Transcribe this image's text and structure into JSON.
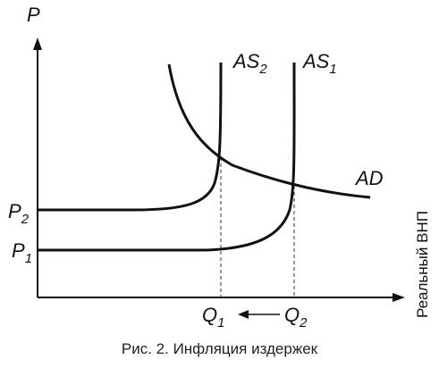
{
  "chart_data": {
    "type": "line",
    "y_axis_label": "P",
    "x_axis_label": "Реальный ВНП",
    "caption": "Рис. 2. Инфляция издержек",
    "price_levels": [
      {
        "id": "p2",
        "base": "P",
        "sub": "2"
      },
      {
        "id": "p1",
        "base": "P",
        "sub": "1"
      }
    ],
    "output_levels": [
      {
        "id": "q1",
        "base": "Q",
        "sub": "1"
      },
      {
        "id": "q2",
        "base": "Q",
        "sub": "2"
      }
    ],
    "arrow": {
      "from": "Q2",
      "to": "Q1"
    },
    "curves": [
      {
        "id": "as2",
        "base": "AS",
        "sub": "2"
      },
      {
        "id": "as1",
        "base": "AS",
        "sub": "1"
      },
      {
        "id": "ad",
        "base": "AD",
        "sub": ""
      }
    ],
    "grid": false
  }
}
